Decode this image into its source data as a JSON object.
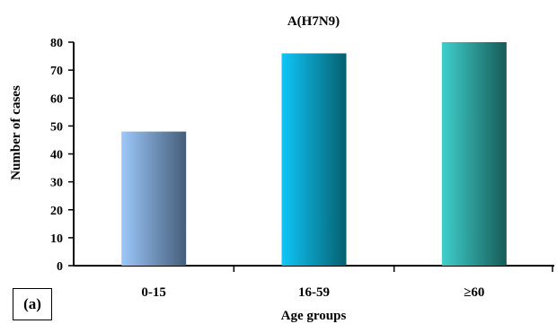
{
  "panel_label": "(a)",
  "chart_data": {
    "type": "bar",
    "title": "A(H7N9)",
    "xlabel": "Age groups",
    "ylabel": "Number of cases",
    "categories": [
      "0-15",
      "16-59",
      "≥60"
    ],
    "values": [
      48,
      76,
      80
    ],
    "ylim": [
      0,
      80
    ],
    "yticks": [
      "0",
      "10",
      "20",
      "30",
      "40",
      "50",
      "60",
      "70",
      "80"
    ],
    "grid": false,
    "legend": "none",
    "bar_gradients": [
      [
        "#9cc8fa",
        "#455d7a"
      ],
      [
        "#0fc6f8",
        "#05606f"
      ],
      [
        "#3fd0cc",
        "#175a57"
      ]
    ]
  }
}
